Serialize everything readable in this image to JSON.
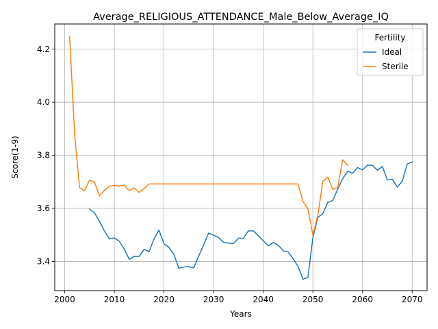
{
  "chart_data": {
    "type": "line",
    "title": "Average_RELIGIOUS_ATTENDANCE_Male_Below_Average_IQ",
    "xlabel": "Years",
    "ylabel": "Score(1-9)",
    "xlim": [
      1998,
      2073
    ],
    "ylim": [
      3.29,
      4.295
    ],
    "xticks": [
      2000,
      2010,
      2020,
      2030,
      2040,
      2050,
      2060,
      2070
    ],
    "xtick_labels": [
      "2000",
      "2010",
      "2020",
      "2030",
      "2040",
      "2050",
      "2060",
      "2070"
    ],
    "yticks": [
      3.4,
      3.6,
      3.8,
      4.0,
      4.2
    ],
    "ytick_labels": [
      "3.4",
      "3.6",
      "3.8",
      "4.0",
      "4.2"
    ],
    "grid": true,
    "legend": {
      "title": "Fertility",
      "position": "top-right"
    },
    "series": [
      {
        "name": "Ideal",
        "color": "#1f77b4",
        "x": [
          2005,
          2006,
          2007,
          2008,
          2009,
          2010,
          2011,
          2012,
          2013,
          2014,
          2015,
          2016,
          2017,
          2018,
          2019,
          2020,
          2021,
          2022,
          2023,
          2024,
          2025,
          2026,
          2027,
          2028,
          2029,
          2030,
          2031,
          2032,
          2033,
          2034,
          2035,
          2036,
          2037,
          2038,
          2039,
          2040,
          2041,
          2042,
          2043,
          2044,
          2045,
          2046,
          2047,
          2048,
          2049,
          2050,
          2051,
          2052,
          2053,
          2054,
          2055,
          2056,
          2057,
          2058,
          2059,
          2060,
          2061,
          2062,
          2063,
          2064,
          2065,
          2066,
          2067,
          2068,
          2069,
          2070
        ],
        "values": [
          3.598,
          3.583,
          3.552,
          3.515,
          3.485,
          3.489,
          3.476,
          3.447,
          3.408,
          3.419,
          3.419,
          3.445,
          3.437,
          3.485,
          3.518,
          3.467,
          3.453,
          3.427,
          3.374,
          3.379,
          3.38,
          3.376,
          3.42,
          3.463,
          3.507,
          3.499,
          3.49,
          3.472,
          3.469,
          3.467,
          3.488,
          3.487,
          3.515,
          3.515,
          3.497,
          3.478,
          3.459,
          3.471,
          3.462,
          3.44,
          3.436,
          3.41,
          3.382,
          3.333,
          3.34,
          3.49,
          3.566,
          3.58,
          3.622,
          3.63,
          3.672,
          3.712,
          3.74,
          3.732,
          3.754,
          3.745,
          3.763,
          3.762,
          3.744,
          3.758,
          3.707,
          3.71,
          3.68,
          3.702,
          3.767,
          3.775
        ]
      },
      {
        "name": "Sterile",
        "color": "#ff7f0e",
        "x": [
          2001,
          2002,
          2003,
          2004,
          2005,
          2006,
          2007,
          2008,
          2009,
          2010,
          2011,
          2012,
          2013,
          2014,
          2015,
          2016,
          2017,
          2018,
          2019,
          2020,
          2021,
          2022,
          2023,
          2024,
          2025,
          2026,
          2027,
          2028,
          2029,
          2030,
          2031,
          2032,
          2033,
          2034,
          2035,
          2036,
          2037,
          2038,
          2039,
          2040,
          2041,
          2042,
          2043,
          2044,
          2045,
          2046,
          2047,
          2048,
          2049,
          2050,
          2051,
          2052,
          2053,
          2054,
          2055,
          2056,
          2057
        ],
        "values": [
          4.248,
          3.88,
          3.678,
          3.667,
          3.706,
          3.7,
          3.647,
          3.668,
          3.683,
          3.687,
          3.684,
          3.688,
          3.667,
          3.677,
          3.66,
          3.675,
          3.692,
          3.692,
          3.692,
          3.692,
          3.692,
          3.692,
          3.692,
          3.692,
          3.692,
          3.692,
          3.692,
          3.692,
          3.692,
          3.692,
          3.692,
          3.692,
          3.692,
          3.692,
          3.692,
          3.692,
          3.692,
          3.692,
          3.692,
          3.692,
          3.692,
          3.692,
          3.692,
          3.692,
          3.692,
          3.692,
          3.692,
          3.626,
          3.598,
          3.499,
          3.574,
          3.701,
          3.718,
          3.672,
          3.678,
          3.783,
          3.762
        ]
      }
    ]
  }
}
